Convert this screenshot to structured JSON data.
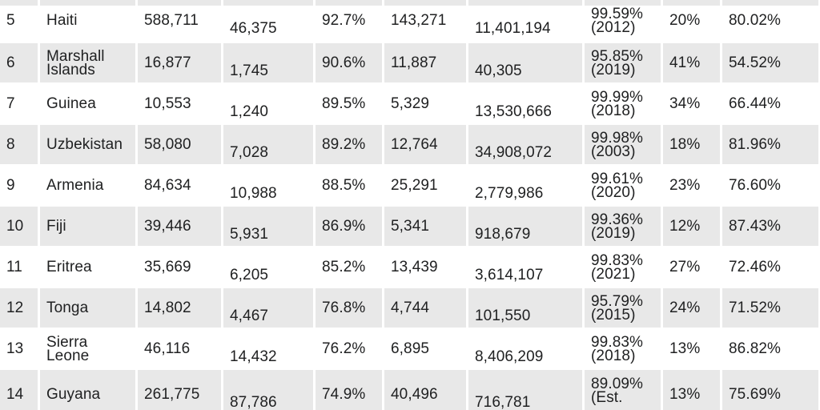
{
  "colors": {
    "stripe": "#e8e8e8",
    "row": "#ffffff",
    "gap": "#ffffff",
    "text": "#202122"
  },
  "chart_data": {
    "type": "table",
    "partial_top_row": true,
    "rows": [
      {
        "rank": "5",
        "country": "Haiti",
        "striped": false,
        "values": [
          "588,711",
          "46,375",
          "92.7%",
          "143,271",
          "11,401,194",
          "99.59% (2012)",
          "20%",
          "80.02%"
        ]
      },
      {
        "rank": "6",
        "country": "Marshall Islands",
        "striped": true,
        "values": [
          "16,877",
          "1,745",
          "90.6%",
          "11,887",
          "40,305",
          "95.85% (2019)",
          "41%",
          "54.52%"
        ]
      },
      {
        "rank": "7",
        "country": "Guinea",
        "striped": false,
        "values": [
          "10,553",
          "1,240",
          "89.5%",
          "5,329",
          "13,530,666",
          "99.99% (2018)",
          "34%",
          "66.44%"
        ]
      },
      {
        "rank": "8",
        "country": "Uzbekistan",
        "striped": true,
        "values": [
          "58,080",
          "7,028",
          "89.2%",
          "12,764",
          "34,908,072",
          "99.98% (2003)",
          "18%",
          "81.96%"
        ]
      },
      {
        "rank": "9",
        "country": "Armenia",
        "striped": false,
        "values": [
          "84,634",
          "10,988",
          "88.5%",
          "25,291",
          "2,779,986",
          "99.61% (2020)",
          "23%",
          "76.60%"
        ]
      },
      {
        "rank": "10",
        "country": "Fiji",
        "striped": true,
        "values": [
          "39,446",
          "5,931",
          "86.9%",
          "5,341",
          "918,679",
          "99.36% (2019)",
          "12%",
          "87.43%"
        ]
      },
      {
        "rank": "11",
        "country": "Eritrea",
        "striped": false,
        "values": [
          "35,669",
          "6,205",
          "85.2%",
          "13,439",
          "3,614,107",
          "99.83% (2021)",
          "27%",
          "72.46%"
        ]
      },
      {
        "rank": "12",
        "country": "Tonga",
        "striped": true,
        "values": [
          "14,802",
          "4,467",
          "76.8%",
          "4,744",
          "101,550",
          "95.79% (2015)",
          "24%",
          "71.52%"
        ]
      },
      {
        "rank": "13",
        "country": "Sierra Leone",
        "striped": false,
        "values": [
          "46,116",
          "14,432",
          "76.2%",
          "6,895",
          "8,406,209",
          "99.83% (2018)",
          "13%",
          "86.82%"
        ]
      },
      {
        "rank": "14",
        "country": "Guyana",
        "striped": true,
        "values": [
          "261,775",
          "87,786",
          "74.9%",
          "40,496",
          "716,781",
          "89.09% (Est.",
          "13%",
          "75.69%"
        ]
      }
    ]
  }
}
